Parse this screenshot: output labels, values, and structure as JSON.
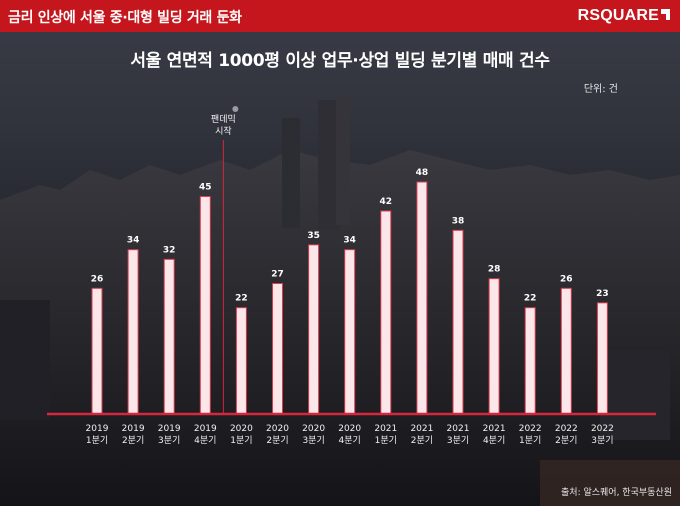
{
  "header": {
    "title": "금리 인상에 서울 중·대형 빌딩 거래 둔화",
    "logo": "RSQUARE"
  },
  "unit_label": "단위: 건",
  "source": "출처: 알스퀘어, 한국부동산원",
  "annotation": {
    "line1": "팬데믹",
    "line2": "시작"
  },
  "colors": {
    "header_bg": "#c4161c",
    "bar_fill": "#fbe6ea",
    "bar_stroke": "#d63d4d",
    "axis_line": "#d7263d",
    "annotation_line": "#d7263d"
  },
  "chart_data": {
    "type": "bar",
    "title": "서울 연면적 1000평 이상 업무·상업 빌딩 분기별 매매 건수",
    "categories": [
      [
        "2019",
        "1분기"
      ],
      [
        "2019",
        "2분기"
      ],
      [
        "2019",
        "3분기"
      ],
      [
        "2019",
        "4분기"
      ],
      [
        "2020",
        "1분기"
      ],
      [
        "2020",
        "2분기"
      ],
      [
        "2020",
        "3분기"
      ],
      [
        "2020",
        "4분기"
      ],
      [
        "2021",
        "1분기"
      ],
      [
        "2021",
        "2분기"
      ],
      [
        "2021",
        "3분기"
      ],
      [
        "2021",
        "4분기"
      ],
      [
        "2022",
        "1분기"
      ],
      [
        "2022",
        "2분기"
      ],
      [
        "2022",
        "3분기"
      ]
    ],
    "values": [
      26,
      34,
      32,
      45,
      22,
      27,
      35,
      34,
      42,
      48,
      38,
      28,
      22,
      26,
      23
    ],
    "ylim": [
      0,
      48
    ],
    "grid": false,
    "legend": "none",
    "annotation_between": [
      3,
      4
    ]
  }
}
